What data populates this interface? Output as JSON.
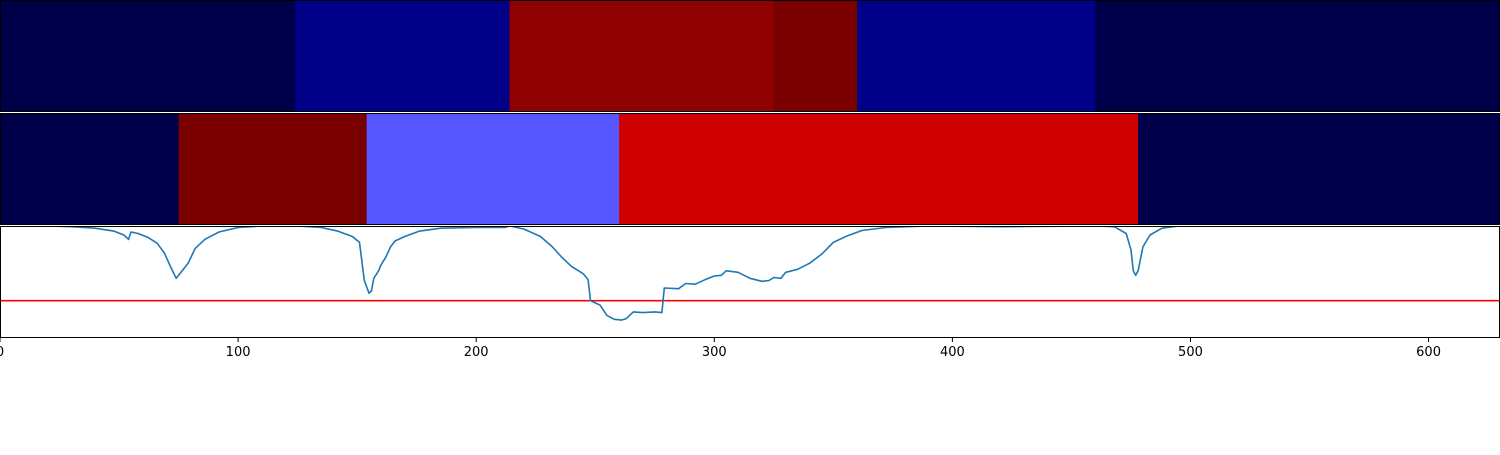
{
  "chart_data": [
    {
      "type": "heatmap",
      "colormap": "seismic",
      "segments": [
        {
          "start": 0,
          "end": 124,
          "color": "#00004a"
        },
        {
          "start": 124,
          "end": 214,
          "color": "#000088"
        },
        {
          "start": 214,
          "end": 325,
          "color": "#8f0000"
        },
        {
          "start": 325,
          "end": 360,
          "color": "#7a0000"
        },
        {
          "start": 360,
          "end": 460,
          "color": "#000088"
        },
        {
          "start": 460,
          "end": 630,
          "color": "#00004a"
        }
      ]
    },
    {
      "type": "heatmap",
      "colormap": "seismic",
      "segments": [
        {
          "start": 0,
          "end": 75,
          "color": "#00004a"
        },
        {
          "start": 75,
          "end": 154,
          "color": "#7a0000"
        },
        {
          "start": 154,
          "end": 260,
          "color": "#5757ff"
        },
        {
          "start": 260,
          "end": 478,
          "color": "#cf0000"
        },
        {
          "start": 478,
          "end": 630,
          "color": "#00004a"
        }
      ]
    },
    {
      "type": "line",
      "xlim": [
        0,
        630
      ],
      "ylim": [
        -0.5,
        1.0
      ],
      "series_color": "#1f77b4",
      "threshold": {
        "value": 0.0,
        "color": "#ff0000"
      },
      "xticks": [
        0,
        100,
        200,
        300,
        400,
        500,
        600
      ],
      "points": [
        [
          0,
          1.0
        ],
        [
          20,
          1.0
        ],
        [
          30,
          0.99
        ],
        [
          40,
          0.97
        ],
        [
          48,
          0.93
        ],
        [
          52,
          0.88
        ],
        [
          54,
          0.82
        ],
        [
          55,
          0.92
        ],
        [
          58,
          0.9
        ],
        [
          62,
          0.85
        ],
        [
          66,
          0.77
        ],
        [
          69,
          0.64
        ],
        [
          72,
          0.43
        ],
        [
          74,
          0.3
        ],
        [
          76,
          0.38
        ],
        [
          79,
          0.5
        ],
        [
          82,
          0.7
        ],
        [
          86,
          0.82
        ],
        [
          92,
          0.92
        ],
        [
          100,
          0.98
        ],
        [
          110,
          1.0
        ],
        [
          125,
          1.0
        ],
        [
          135,
          0.98
        ],
        [
          142,
          0.93
        ],
        [
          148,
          0.86
        ],
        [
          151,
          0.78
        ],
        [
          153,
          0.27
        ],
        [
          155,
          0.1
        ],
        [
          156,
          0.13
        ],
        [
          157,
          0.3
        ],
        [
          159,
          0.4
        ],
        [
          160,
          0.48
        ],
        [
          162,
          0.58
        ],
        [
          164,
          0.72
        ],
        [
          166,
          0.8
        ],
        [
          170,
          0.86
        ],
        [
          176,
          0.93
        ],
        [
          185,
          0.97
        ],
        [
          200,
          0.98
        ],
        [
          212,
          0.98
        ],
        [
          214,
          1.0
        ],
        [
          220,
          0.96
        ],
        [
          227,
          0.86
        ],
        [
          232,
          0.72
        ],
        [
          236,
          0.58
        ],
        [
          240,
          0.46
        ],
        [
          245,
          0.36
        ],
        [
          247,
          0.28
        ],
        [
          248,
          0.0
        ],
        [
          252,
          -0.06
        ],
        [
          255,
          -0.2
        ],
        [
          258,
          -0.25
        ],
        [
          261,
          -0.26
        ],
        [
          263,
          -0.24
        ],
        [
          266,
          -0.15
        ],
        [
          270,
          -0.16
        ],
        [
          275,
          -0.15
        ],
        [
          278,
          -0.16
        ],
        [
          279,
          0.17
        ],
        [
          285,
          0.16
        ],
        [
          288,
          0.23
        ],
        [
          292,
          0.22
        ],
        [
          296,
          0.28
        ],
        [
          300,
          0.33
        ],
        [
          303,
          0.34
        ],
        [
          305,
          0.4
        ],
        [
          310,
          0.38
        ],
        [
          315,
          0.3
        ],
        [
          320,
          0.26
        ],
        [
          323,
          0.27
        ],
        [
          325,
          0.31
        ],
        [
          328,
          0.3
        ],
        [
          330,
          0.38
        ],
        [
          335,
          0.42
        ],
        [
          340,
          0.5
        ],
        [
          345,
          0.62
        ],
        [
          350,
          0.78
        ],
        [
          356,
          0.87
        ],
        [
          362,
          0.94
        ],
        [
          372,
          0.98
        ],
        [
          390,
          1.0
        ],
        [
          420,
          0.99
        ],
        [
          460,
          1.0
        ],
        [
          468,
          0.99
        ],
        [
          473,
          0.9
        ],
        [
          475,
          0.68
        ],
        [
          476,
          0.4
        ],
        [
          477,
          0.34
        ],
        [
          478,
          0.4
        ],
        [
          480,
          0.72
        ],
        [
          483,
          0.88
        ],
        [
          488,
          0.97
        ],
        [
          495,
          1.0
        ]
      ]
    }
  ]
}
